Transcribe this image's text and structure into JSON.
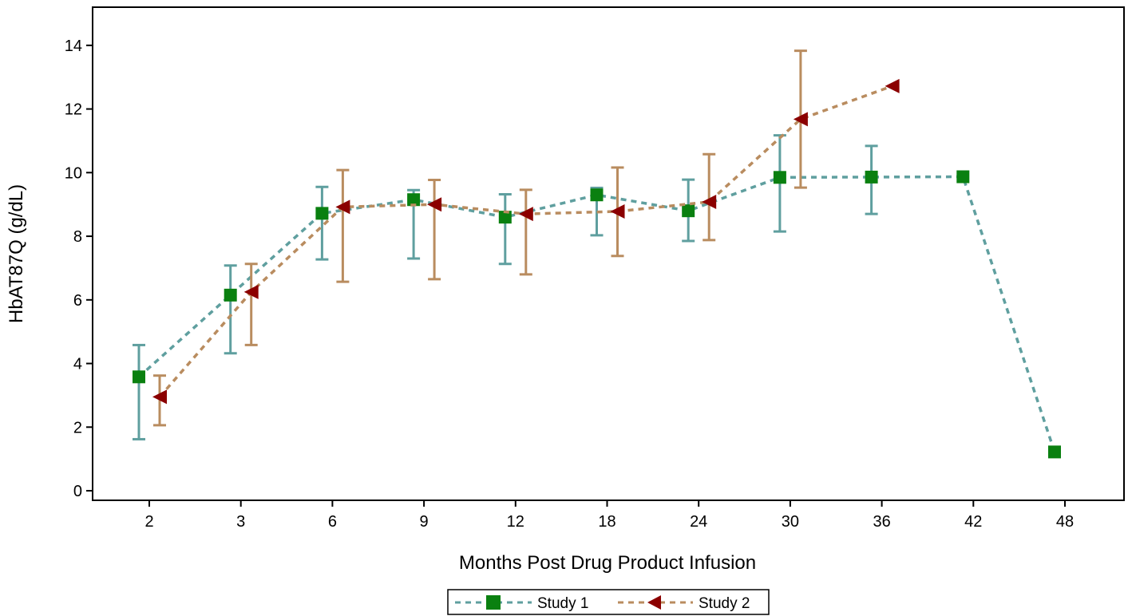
{
  "chart_data": {
    "type": "line",
    "xlabel": "Months Post Drug Product Infusion",
    "ylabel": "HbAT87Q (g/dL)",
    "categories": [
      "2",
      "3",
      "6",
      "9",
      "12",
      "18",
      "24",
      "30",
      "36",
      "42",
      "48"
    ],
    "ylim": [
      -0.3,
      15.2
    ],
    "yticks": [
      0,
      2,
      4,
      6,
      8,
      10,
      12,
      14
    ],
    "grid": false,
    "legend_position": "bottom-center",
    "series": [
      {
        "name": "Study 1",
        "marker": "square",
        "line_color": "#5f9f9f",
        "marker_color": "#0a8010",
        "values": [
          3.58,
          6.15,
          8.72,
          9.15,
          8.6,
          9.3,
          8.8,
          9.85,
          9.86,
          9.87,
          1.22
        ],
        "err_low": [
          1.62,
          4.32,
          7.27,
          7.3,
          7.13,
          8.03,
          7.85,
          8.15,
          8.7,
          null,
          null
        ],
        "err_high": [
          4.58,
          7.08,
          9.55,
          9.45,
          9.32,
          9.52,
          9.78,
          11.17,
          10.84,
          null,
          null
        ]
      },
      {
        "name": "Study 2",
        "marker": "left-triangle",
        "line_color": "#b98c5f",
        "marker_color": "#8b0000",
        "values": [
          2.95,
          6.25,
          8.92,
          9.0,
          8.7,
          8.78,
          9.08,
          11.68,
          12.72,
          null,
          null
        ],
        "err_low": [
          2.06,
          4.58,
          6.57,
          6.65,
          6.8,
          7.38,
          7.88,
          9.53,
          null,
          null,
          null
        ],
        "err_high": [
          3.62,
          7.13,
          10.08,
          9.77,
          9.46,
          10.16,
          10.58,
          13.83,
          null,
          null,
          null
        ]
      }
    ]
  }
}
